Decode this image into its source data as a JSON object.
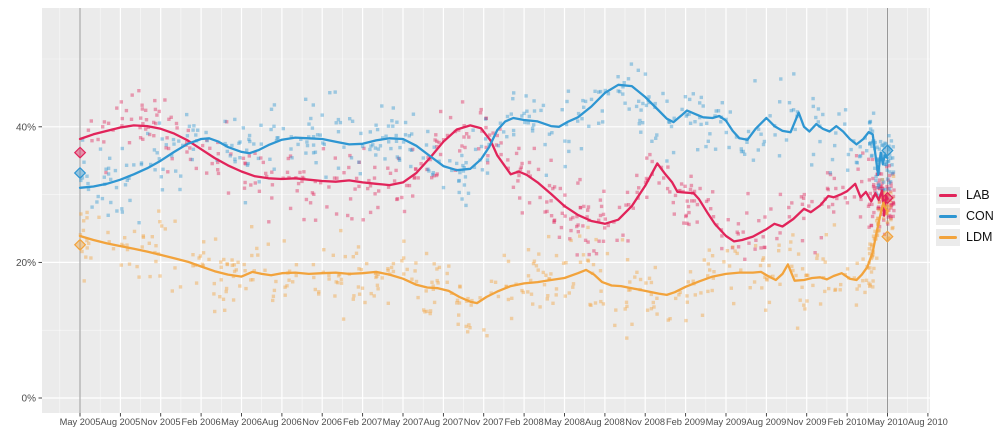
{
  "legend": {
    "items": [
      {
        "label": "LAB",
        "color": "#E1245A"
      },
      {
        "label": "CON",
        "color": "#2E96D2"
      },
      {
        "label": "LDM",
        "color": "#F2A33C"
      }
    ]
  },
  "chart_data": {
    "type": "scatter",
    "title": "",
    "description": "UK voting-intention polls May 2005 - May 2010: jittered poll points with moving-average trend lines per party, election results marked by diamonds and vertical lines",
    "x_axis": {
      "tick_labels": [
        "May 2005",
        "Aug 2005",
        "Nov 2005",
        "Feb 2006",
        "May 2006",
        "Aug 2006",
        "Nov 2006",
        "Feb 2007",
        "May 2007",
        "Aug 2007",
        "Nov 2007",
        "Feb 2008",
        "May 2008",
        "Aug 2008",
        "Nov 2008",
        "Feb 2009",
        "May 2009",
        "Aug 2009",
        "Nov 2009",
        "Feb 2010",
        "May 2010",
        "Aug 2010"
      ],
      "months_per_tick": 3
    },
    "y_axis": {
      "tick_labels": [
        "0%",
        "20%",
        "40%"
      ],
      "tick_values": [
        0,
        20,
        40
      ],
      "minor_values": [
        10,
        30,
        50
      ],
      "unit": "%",
      "range_shown": [
        -2,
        57
      ]
    },
    "style": {
      "plot_bg": "#EBEBEB",
      "grid_major": "#FFFFFF",
      "grid_minor": "#FFFFFF",
      "axis_text": "#4D4D4D",
      "tick_mark": "#333333",
      "election_line": "#7F7F7F"
    },
    "series": [
      {
        "name": "LAB",
        "color": "#E1245A",
        "trend": [
          [
            0,
            38.2
          ],
          [
            1,
            38.9
          ],
          [
            2,
            39.4
          ],
          [
            3,
            39.9
          ],
          [
            4,
            40.2
          ],
          [
            5,
            40.1
          ],
          [
            6,
            39.7
          ],
          [
            7,
            39.0
          ],
          [
            8,
            38.0
          ],
          [
            9,
            36.7
          ],
          [
            10,
            35.4
          ],
          [
            11,
            34.3
          ],
          [
            12,
            33.4
          ],
          [
            13,
            32.7
          ],
          [
            14,
            32.4
          ],
          [
            15,
            32.3
          ],
          [
            16,
            32.4
          ],
          [
            17,
            32.2
          ],
          [
            18,
            32.0
          ],
          [
            19,
            31.9
          ],
          [
            20,
            32.1
          ],
          [
            21,
            31.8
          ],
          [
            22,
            31.6
          ],
          [
            23,
            31.4
          ],
          [
            24,
            31.8
          ],
          [
            25,
            33.2
          ],
          [
            26,
            35.4
          ],
          [
            27,
            37.8
          ],
          [
            28,
            39.6
          ],
          [
            29,
            40.2
          ],
          [
            29.8,
            39.8
          ],
          [
            30.5,
            38.0
          ],
          [
            31,
            35.8
          ],
          [
            32,
            33.0
          ],
          [
            32.6,
            33.4
          ],
          [
            33.2,
            32.9
          ],
          [
            34,
            31.8
          ],
          [
            35,
            30.1
          ],
          [
            36,
            28.3
          ],
          [
            37,
            27.0
          ],
          [
            38,
            26.1
          ],
          [
            39,
            25.7
          ],
          [
            40,
            26.3
          ],
          [
            41,
            28.3
          ],
          [
            42,
            31.3
          ],
          [
            42.9,
            34.6
          ],
          [
            43.5,
            33.0
          ],
          [
            44,
            31.8
          ],
          [
            44.4,
            30.4
          ],
          [
            45,
            30.3
          ],
          [
            45.6,
            30.2
          ],
          [
            46,
            29.3
          ],
          [
            46.6,
            27.4
          ],
          [
            47.2,
            25.6
          ],
          [
            48,
            23.9
          ],
          [
            48.6,
            23.1
          ],
          [
            49.2,
            23.3
          ],
          [
            50,
            23.8
          ],
          [
            51,
            24.9
          ],
          [
            51.6,
            25.7
          ],
          [
            52.2,
            25.3
          ],
          [
            53,
            26.4
          ],
          [
            53.8,
            27.9
          ],
          [
            54.3,
            27.4
          ],
          [
            55,
            28.4
          ],
          [
            55.6,
            29.8
          ],
          [
            56,
            29.6
          ],
          [
            56.5,
            30.0
          ],
          [
            57,
            30.5
          ],
          [
            57.6,
            31.6
          ],
          [
            58,
            29.6
          ],
          [
            58.4,
            30.4
          ],
          [
            58.8,
            29.0
          ],
          [
            59.1,
            30.2
          ],
          [
            59.35,
            29.2
          ],
          [
            59.6,
            30.6
          ],
          [
            59.75,
            26.9
          ],
          [
            59.9,
            29.8
          ],
          [
            60,
            29.4
          ]
        ]
      },
      {
        "name": "CON",
        "color": "#2E96D2",
        "trend": [
          [
            0,
            31.0
          ],
          [
            1,
            31.2
          ],
          [
            2,
            31.6
          ],
          [
            3,
            32.2
          ],
          [
            4,
            33.0
          ],
          [
            5,
            33.9
          ],
          [
            6,
            35.0
          ],
          [
            7,
            36.3
          ],
          [
            8,
            37.5
          ],
          [
            9,
            38.2
          ],
          [
            9.6,
            38.3
          ],
          [
            10.3,
            37.8
          ],
          [
            11,
            37.0
          ],
          [
            12,
            36.3
          ],
          [
            12.6,
            36.1
          ],
          [
            13.3,
            36.6
          ],
          [
            14,
            37.3
          ],
          [
            15,
            38.1
          ],
          [
            16,
            38.4
          ],
          [
            17,
            38.3
          ],
          [
            18,
            38.2
          ],
          [
            19,
            37.8
          ],
          [
            20,
            37.4
          ],
          [
            21,
            37.5
          ],
          [
            22,
            38.0
          ],
          [
            23,
            38.3
          ],
          [
            24,
            38.2
          ],
          [
            25,
            37.2
          ],
          [
            26,
            35.7
          ],
          [
            27,
            34.2
          ],
          [
            28,
            33.6
          ],
          [
            29,
            33.8
          ],
          [
            29.8,
            35.2
          ],
          [
            30.4,
            37.0
          ],
          [
            31,
            39.5
          ],
          [
            31.6,
            40.8
          ],
          [
            32.2,
            41.3
          ],
          [
            33,
            41.0
          ],
          [
            34,
            40.8
          ],
          [
            35,
            40.1
          ],
          [
            35.6,
            40.0
          ],
          [
            36.2,
            40.7
          ],
          [
            37,
            41.4
          ],
          [
            38,
            43.0
          ],
          [
            39,
            45.0
          ],
          [
            40,
            46.2
          ],
          [
            41,
            46.0
          ],
          [
            42,
            44.4
          ],
          [
            43,
            42.4
          ],
          [
            43.6,
            41.2
          ],
          [
            44.1,
            40.7
          ],
          [
            44.7,
            41.7
          ],
          [
            45.1,
            42.4
          ],
          [
            45.7,
            41.9
          ],
          [
            46.3,
            41.4
          ],
          [
            47,
            41.3
          ],
          [
            47.5,
            41.6
          ],
          [
            48,
            40.9
          ],
          [
            48.5,
            39.4
          ],
          [
            49,
            38.3
          ],
          [
            49.6,
            38.1
          ],
          [
            50.2,
            39.7
          ],
          [
            51,
            41.3
          ],
          [
            51.6,
            40.1
          ],
          [
            52.2,
            39.4
          ],
          [
            52.8,
            39.2
          ],
          [
            53.4,
            42.1
          ],
          [
            53.8,
            40.0
          ],
          [
            54.2,
            39.3
          ],
          [
            54.7,
            40.4
          ],
          [
            55.2,
            39.7
          ],
          [
            55.7,
            39.3
          ],
          [
            56.2,
            40.1
          ],
          [
            56.7,
            39.3
          ],
          [
            57.2,
            38.2
          ],
          [
            57.7,
            37.4
          ],
          [
            58.2,
            38.2
          ],
          [
            58.6,
            39.2
          ],
          [
            58.9,
            38.9
          ],
          [
            59.3,
            32.9
          ],
          [
            59.5,
            36.2
          ],
          [
            59.65,
            34.5
          ],
          [
            59.8,
            35.8
          ],
          [
            60,
            35.4
          ]
        ]
      },
      {
        "name": "LDM",
        "color": "#F2A33C",
        "trend": [
          [
            0,
            23.9
          ],
          [
            1,
            23.3
          ],
          [
            2,
            22.8
          ],
          [
            3,
            22.4
          ],
          [
            4,
            22.0
          ],
          [
            5,
            21.6
          ],
          [
            6,
            21.1
          ],
          [
            7,
            20.6
          ],
          [
            8,
            20.1
          ],
          [
            9,
            19.4
          ],
          [
            10,
            18.7
          ],
          [
            11,
            18.2
          ],
          [
            12,
            17.9
          ],
          [
            12.8,
            18.6
          ],
          [
            13.5,
            18.3
          ],
          [
            14.2,
            18.1
          ],
          [
            15,
            18.4
          ],
          [
            16,
            18.5
          ],
          [
            17,
            18.3
          ],
          [
            18,
            18.4
          ],
          [
            19,
            18.5
          ],
          [
            20,
            18.3
          ],
          [
            21,
            18.4
          ],
          [
            22,
            18.6
          ],
          [
            23,
            18.2
          ],
          [
            24,
            17.6
          ],
          [
            25,
            16.7
          ],
          [
            25.8,
            16.3
          ],
          [
            26.6,
            16.2
          ],
          [
            27.4,
            15.8
          ],
          [
            28.2,
            14.9
          ],
          [
            29,
            14.2
          ],
          [
            29.5,
            14.0
          ],
          [
            30.2,
            14.9
          ],
          [
            31,
            15.7
          ],
          [
            32,
            16.5
          ],
          [
            33,
            16.9
          ],
          [
            34,
            17.1
          ],
          [
            35,
            17.4
          ],
          [
            36,
            17.7
          ],
          [
            37,
            18.4
          ],
          [
            37.6,
            18.9
          ],
          [
            38.2,
            18.2
          ],
          [
            38.8,
            17.1
          ],
          [
            39.5,
            16.6
          ],
          [
            40.2,
            16.5
          ],
          [
            41,
            16.2
          ],
          [
            42,
            15.8
          ],
          [
            43,
            15.4
          ],
          [
            43.6,
            15.2
          ],
          [
            44.2,
            15.6
          ],
          [
            45,
            16.4
          ],
          [
            46,
            17.2
          ],
          [
            47,
            17.9
          ],
          [
            48,
            18.3
          ],
          [
            49,
            18.5
          ],
          [
            50,
            18.5
          ],
          [
            50.6,
            18.6
          ],
          [
            51.2,
            17.9
          ],
          [
            51.7,
            17.4
          ],
          [
            52.2,
            18.3
          ],
          [
            52.6,
            19.7
          ],
          [
            53.1,
            17.3
          ],
          [
            53.8,
            17.4
          ],
          [
            54.4,
            17.7
          ],
          [
            55,
            17.8
          ],
          [
            55.5,
            17.5
          ],
          [
            56,
            18.0
          ],
          [
            56.6,
            18.4
          ],
          [
            57.2,
            17.6
          ],
          [
            57.7,
            17.4
          ],
          [
            58.1,
            18.2
          ],
          [
            58.5,
            19.3
          ],
          [
            58.9,
            21.5
          ],
          [
            59.2,
            24.5
          ],
          [
            59.5,
            27.3
          ],
          [
            59.7,
            28.8
          ],
          [
            59.85,
            28.0
          ],
          [
            60,
            27.6
          ]
        ]
      }
    ],
    "elections": [
      {
        "label": "May 2005",
        "month": 0,
        "results": [
          {
            "party": "LAB",
            "pct": 36.2
          },
          {
            "party": "CON",
            "pct": 33.2
          },
          {
            "party": "LDM",
            "pct": 22.6
          }
        ]
      },
      {
        "label": "May 2010",
        "month": 60,
        "results": [
          {
            "party": "LAB",
            "pct": 29.5
          },
          {
            "party": "CON",
            "pct": 36.5
          },
          {
            "party": "LDM",
            "pct": 23.8
          }
        ]
      }
    ],
    "scatter_style": {
      "point_size": 3.4,
      "opacity": 0.42,
      "points_per_series": 400,
      "end_cluster_points": 70,
      "jitter_sd": 2.7,
      "seeds": [
        101,
        202,
        303
      ]
    }
  }
}
